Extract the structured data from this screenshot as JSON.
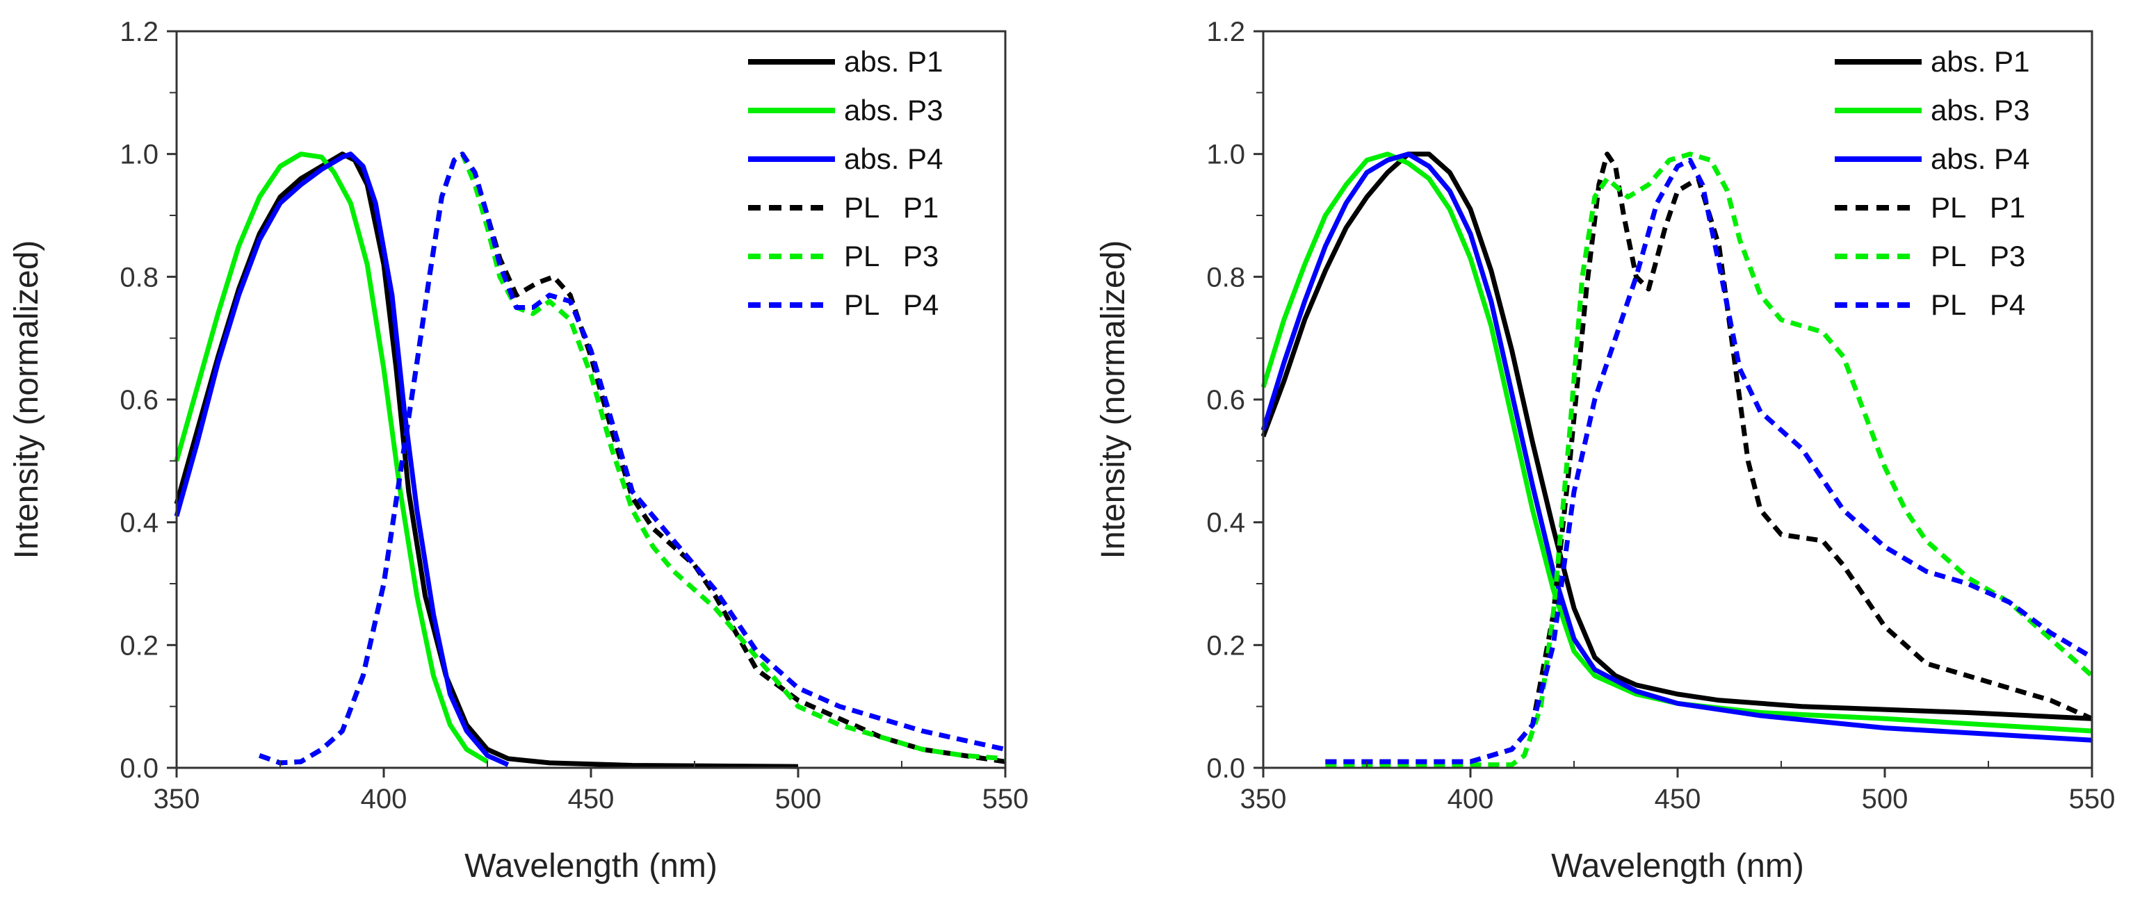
{
  "chart_data": [
    {
      "type": "line",
      "title": "",
      "xlabel": "Wavelength (nm)",
      "ylabel": "Intensity (normalized)",
      "xlim": [
        350,
        550
      ],
      "ylim": [
        0.0,
        1.2
      ],
      "xticks": [
        "350",
        "400",
        "450",
        "500",
        "550"
      ],
      "yticks": [
        "0.0",
        "0.2",
        "0.4",
        "0.6",
        "0.8",
        "1.0",
        "1.2"
      ],
      "legend_position": "top-right",
      "grid": false,
      "series": [
        {
          "name": "abs. P1",
          "color": "#000000",
          "style": "solid",
          "x": [
            350,
            355,
            360,
            365,
            370,
            375,
            380,
            385,
            390,
            393,
            396,
            400,
            403,
            406,
            410,
            415,
            420,
            425,
            430,
            440,
            460,
            500
          ],
          "y": [
            0.43,
            0.55,
            0.67,
            0.78,
            0.87,
            0.93,
            0.96,
            0.98,
            1.0,
            0.99,
            0.95,
            0.82,
            0.65,
            0.45,
            0.28,
            0.15,
            0.07,
            0.03,
            0.015,
            0.008,
            0.004,
            0.002
          ]
        },
        {
          "name": "abs. P3",
          "color": "#00ee00",
          "style": "solid",
          "x": [
            350,
            355,
            360,
            365,
            370,
            375,
            380,
            385,
            388,
            392,
            396,
            400,
            404,
            408,
            412,
            416,
            420,
            425
          ],
          "y": [
            0.5,
            0.62,
            0.74,
            0.85,
            0.93,
            0.98,
            1.0,
            0.995,
            0.97,
            0.92,
            0.82,
            0.65,
            0.45,
            0.28,
            0.15,
            0.07,
            0.03,
            0.01
          ]
        },
        {
          "name": "abs. P4",
          "color": "#0000ff",
          "style": "solid",
          "x": [
            350,
            355,
            360,
            365,
            370,
            375,
            380,
            385,
            390,
            392,
            395,
            398,
            402,
            405,
            408,
            412,
            416,
            420,
            425,
            430
          ],
          "y": [
            0.41,
            0.53,
            0.66,
            0.77,
            0.86,
            0.92,
            0.95,
            0.975,
            0.995,
            1.0,
            0.98,
            0.92,
            0.77,
            0.58,
            0.42,
            0.25,
            0.12,
            0.06,
            0.02,
            0.005
          ]
        },
        {
          "name": "PL   P1",
          "color": "#000000",
          "style": "dashed",
          "x": [
            370,
            375,
            380,
            385,
            390,
            395,
            400,
            404,
            408,
            411,
            414,
            417,
            419,
            422,
            425,
            428,
            432,
            437,
            441,
            445,
            450,
            455,
            460,
            465,
            470,
            475,
            480,
            485,
            490,
            500,
            510,
            520,
            530,
            540,
            550
          ],
          "y": [
            0.02,
            0.008,
            0.01,
            0.03,
            0.06,
            0.15,
            0.3,
            0.48,
            0.66,
            0.8,
            0.93,
            0.99,
            1.0,
            0.96,
            0.9,
            0.83,
            0.77,
            0.79,
            0.8,
            0.77,
            0.67,
            0.55,
            0.44,
            0.39,
            0.36,
            0.33,
            0.28,
            0.22,
            0.16,
            0.11,
            0.08,
            0.05,
            0.03,
            0.02,
            0.01
          ]
        },
        {
          "name": "PL   P3",
          "color": "#00ee00",
          "style": "dashed",
          "x": [
            370,
            375,
            380,
            385,
            390,
            395,
            400,
            404,
            408,
            411,
            414,
            417,
            419,
            422,
            425,
            428,
            432,
            436,
            440,
            445,
            450,
            455,
            460,
            465,
            470,
            480,
            490,
            500,
            510,
            520,
            530,
            540,
            550
          ],
          "y": [
            0.02,
            0.008,
            0.01,
            0.03,
            0.06,
            0.15,
            0.3,
            0.48,
            0.66,
            0.8,
            0.93,
            0.99,
            1.0,
            0.95,
            0.88,
            0.8,
            0.75,
            0.74,
            0.76,
            0.73,
            0.64,
            0.52,
            0.42,
            0.36,
            0.32,
            0.26,
            0.18,
            0.1,
            0.07,
            0.05,
            0.03,
            0.02,
            0.015
          ]
        },
        {
          "name": "PL   P4",
          "color": "#0000ff",
          "style": "dashed",
          "x": [
            370,
            375,
            380,
            385,
            390,
            395,
            400,
            404,
            408,
            411,
            414,
            417,
            419,
            422,
            425,
            428,
            432,
            436,
            440,
            445,
            450,
            460,
            470,
            480,
            490,
            500,
            510,
            520,
            530,
            540,
            550
          ],
          "y": [
            0.02,
            0.008,
            0.01,
            0.03,
            0.06,
            0.15,
            0.3,
            0.48,
            0.66,
            0.8,
            0.93,
            0.99,
            1.0,
            0.97,
            0.9,
            0.82,
            0.75,
            0.75,
            0.77,
            0.76,
            0.68,
            0.45,
            0.37,
            0.29,
            0.19,
            0.13,
            0.1,
            0.08,
            0.06,
            0.045,
            0.03
          ]
        }
      ]
    },
    {
      "type": "line",
      "title": "",
      "xlabel": "Wavelength (nm)",
      "ylabel": "Intensity (normalized)",
      "xlim": [
        350,
        550
      ],
      "ylim": [
        0.0,
        1.2
      ],
      "xticks": [
        "350",
        "400",
        "450",
        "500",
        "550"
      ],
      "yticks": [
        "0.0",
        "0.2",
        "0.4",
        "0.6",
        "0.8",
        "1.0",
        "1.2"
      ],
      "legend_position": "top-right",
      "grid": false,
      "series": [
        {
          "name": "abs. P1",
          "color": "#000000",
          "style": "solid",
          "x": [
            350,
            355,
            360,
            365,
            370,
            375,
            380,
            385,
            390,
            395,
            400,
            405,
            410,
            415,
            420,
            425,
            430,
            435,
            440,
            450,
            460,
            480,
            500,
            520,
            550
          ],
          "y": [
            0.54,
            0.63,
            0.73,
            0.81,
            0.88,
            0.93,
            0.97,
            1.0,
            1.0,
            0.97,
            0.91,
            0.81,
            0.68,
            0.53,
            0.39,
            0.26,
            0.18,
            0.15,
            0.135,
            0.12,
            0.11,
            0.1,
            0.095,
            0.09,
            0.08
          ]
        },
        {
          "name": "abs. P3",
          "color": "#00ee00",
          "style": "solid",
          "x": [
            350,
            355,
            360,
            365,
            370,
            375,
            380,
            385,
            390,
            395,
            400,
            405,
            410,
            415,
            420,
            425,
            430,
            440,
            450,
            470,
            500,
            525,
            550
          ],
          "y": [
            0.62,
            0.73,
            0.82,
            0.9,
            0.95,
            0.99,
            1.0,
            0.985,
            0.96,
            0.91,
            0.83,
            0.72,
            0.57,
            0.42,
            0.29,
            0.19,
            0.15,
            0.12,
            0.105,
            0.09,
            0.08,
            0.07,
            0.06
          ]
        },
        {
          "name": "abs. P4",
          "color": "#0000ff",
          "style": "solid",
          "x": [
            350,
            355,
            360,
            365,
            370,
            375,
            380,
            385,
            390,
            395,
            400,
            405,
            410,
            415,
            420,
            425,
            430,
            440,
            450,
            470,
            500,
            525,
            550
          ],
          "y": [
            0.55,
            0.66,
            0.76,
            0.85,
            0.92,
            0.97,
            0.99,
            1.0,
            0.98,
            0.94,
            0.87,
            0.76,
            0.61,
            0.46,
            0.32,
            0.21,
            0.16,
            0.125,
            0.105,
            0.085,
            0.065,
            0.055,
            0.045
          ]
        },
        {
          "name": "PL   P1",
          "color": "#000000",
          "style": "dashed",
          "x": [
            365,
            400,
            410,
            415,
            420,
            424,
            428,
            431,
            433,
            435,
            437,
            440,
            443,
            447,
            450,
            455,
            460,
            463,
            467,
            470,
            475,
            485,
            490,
            500,
            510,
            520,
            530,
            540,
            550
          ],
          "y": [
            0.01,
            0.01,
            0.03,
            0.07,
            0.25,
            0.5,
            0.78,
            0.95,
            1.0,
            0.98,
            0.9,
            0.8,
            0.78,
            0.88,
            0.94,
            0.96,
            0.85,
            0.7,
            0.5,
            0.42,
            0.38,
            0.37,
            0.33,
            0.23,
            0.17,
            0.15,
            0.13,
            0.11,
            0.08
          ]
        },
        {
          "name": "PL   P3",
          "color": "#00ee00",
          "style": "dashed",
          "x": [
            365,
            410,
            413,
            417,
            420,
            424,
            427,
            430,
            433,
            438,
            443,
            448,
            453,
            458,
            462,
            465,
            470,
            475,
            485,
            490,
            495,
            500,
            505,
            510,
            520,
            530,
            540,
            550
          ],
          "y": [
            0.005,
            0.005,
            0.02,
            0.1,
            0.25,
            0.55,
            0.8,
            0.93,
            0.96,
            0.93,
            0.95,
            0.99,
            1.0,
            0.99,
            0.94,
            0.86,
            0.77,
            0.73,
            0.71,
            0.67,
            0.58,
            0.49,
            0.42,
            0.37,
            0.31,
            0.27,
            0.21,
            0.15
          ]
        },
        {
          "name": "PL   P4",
          "color": "#0000ff",
          "style": "dashed",
          "x": [
            365,
            400,
            410,
            415,
            420,
            425,
            430,
            435,
            440,
            445,
            450,
            453,
            456,
            460,
            465,
            470,
            480,
            490,
            500,
            510,
            520,
            530,
            540,
            550
          ],
          "y": [
            0.01,
            0.01,
            0.03,
            0.07,
            0.2,
            0.45,
            0.6,
            0.7,
            0.8,
            0.92,
            0.98,
            0.99,
            0.95,
            0.82,
            0.65,
            0.58,
            0.52,
            0.42,
            0.36,
            0.32,
            0.3,
            0.27,
            0.22,
            0.18
          ]
        }
      ]
    }
  ]
}
